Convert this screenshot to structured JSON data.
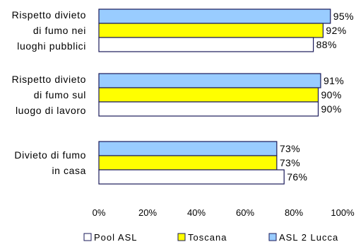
{
  "chart_data": {
    "type": "bar",
    "orientation": "horizontal",
    "categories": [
      [
        "Rispetto divieto",
        "di fumo nei",
        "luoghi pubblici"
      ],
      [
        "Rispetto divieto",
        "di fumo sul",
        "luogo di lavoro"
      ],
      [
        "Divieto di fumo",
        "in casa"
      ]
    ],
    "series": [
      {
        "name": "ASL 2 Lucca",
        "color": "#99CCFF",
        "values": [
          95,
          91,
          73
        ],
        "labels": [
          "95%",
          "91%",
          "73%"
        ]
      },
      {
        "name": "Toscana",
        "color": "#FFFF00",
        "values": [
          92,
          90,
          73
        ],
        "labels": [
          "92%",
          "90%",
          "73%"
        ]
      },
      {
        "name": "Pool ASL",
        "color": "#FFFFFF",
        "values": [
          88,
          90,
          76
        ],
        "labels": [
          "88%",
          "90%",
          "76%"
        ]
      }
    ],
    "xlim": [
      0,
      100
    ],
    "xticks": [
      "0%",
      "20%",
      "40%",
      "60%",
      "80%",
      "100%"
    ],
    "legend": {
      "placement": "bottom",
      "order": [
        "Pool ASL",
        "Toscana",
        "ASL 2 Lucca"
      ]
    },
    "grid": false
  }
}
